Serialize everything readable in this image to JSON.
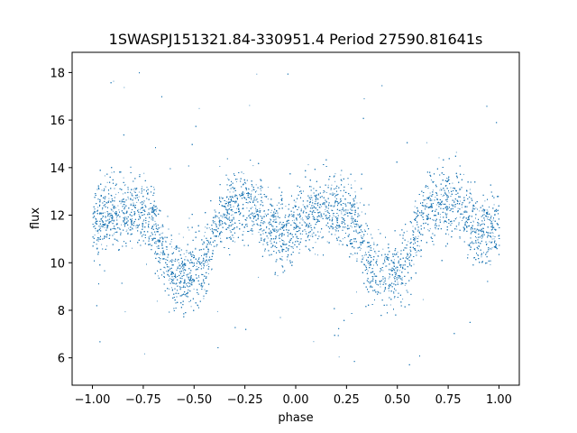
{
  "chart_data": {
    "type": "scatter",
    "title": "1SWASPJ151321.84-330951.4 Period 27590.81641s",
    "xlabel": "phase",
    "ylabel": "flux",
    "xlim": [
      -1.1,
      1.1
    ],
    "ylim": [
      4.85,
      18.85
    ],
    "xticks": [
      -1.0,
      -0.75,
      -0.5,
      -0.25,
      0.0,
      0.25,
      0.5,
      0.75,
      1.0
    ],
    "xtick_labels": [
      "−1.00",
      "−0.75",
      "−0.50",
      "−0.25",
      "0.00",
      "0.25",
      "0.50",
      "0.75",
      "1.00"
    ],
    "yticks": [
      6,
      8,
      10,
      12,
      14,
      16,
      18
    ],
    "ytick_labels": [
      "6",
      "8",
      "10",
      "12",
      "14",
      "16",
      "18"
    ],
    "grid": false,
    "legend": "none",
    "point_color": "#1f77b4",
    "series": [
      {
        "phase": [
          -1.0,
          -0.95,
          -0.9,
          -0.85,
          -0.8,
          -0.75,
          -0.7,
          -0.65,
          -0.6,
          -0.55,
          -0.5,
          -0.45,
          -0.4,
          -0.35,
          -0.3,
          -0.25,
          -0.2,
          -0.15,
          -0.1,
          -0.05,
          0.0,
          0.05,
          0.1,
          0.15,
          0.2,
          0.25,
          0.3,
          0.35,
          0.4,
          0.45,
          0.5,
          0.55,
          0.6,
          0.65,
          0.7,
          0.75,
          0.8,
          0.85,
          0.9,
          0.95,
          1.0
        ],
        "flux_center": [
          11.4,
          11.9,
          12.2,
          12.3,
          12.2,
          12.1,
          11.7,
          10.3,
          9.6,
          9.5,
          9.6,
          10.0,
          11.4,
          12.3,
          12.5,
          12.5,
          12.3,
          11.8,
          11.3,
          11.3,
          11.4,
          11.9,
          12.2,
          12.3,
          12.2,
          12.1,
          11.7,
          10.3,
          9.6,
          9.5,
          9.6,
          10.0,
          11.4,
          12.3,
          12.5,
          12.5,
          12.3,
          11.8,
          11.3,
          11.3,
          11.4
        ],
        "scatter_sigma": 0.75,
        "outlier_range": [
          5.5,
          18.3
        ],
        "n_points": 14000
      }
    ]
  }
}
